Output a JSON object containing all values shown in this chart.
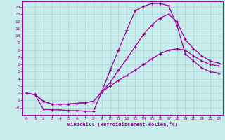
{
  "xlabel": "Windchill (Refroidissement éolien,°C)",
  "bg_color": "#c8ecec",
  "grid_color": "#aad4d4",
  "line_color": "#990099",
  "xlim": [
    -0.5,
    23.5
  ],
  "ylim": [
    -1.0,
    14.8
  ],
  "xticks": [
    0,
    1,
    2,
    3,
    4,
    5,
    6,
    7,
    8,
    9,
    10,
    11,
    12,
    13,
    14,
    15,
    16,
    17,
    18,
    19,
    20,
    21,
    22,
    23
  ],
  "yticks": [
    0,
    1,
    2,
    3,
    4,
    5,
    6,
    7,
    8,
    9,
    10,
    11,
    12,
    13,
    14
  ],
  "ytick_labels": [
    "-0",
    "1",
    "2",
    "3",
    "4",
    "5",
    "6",
    "7",
    "8",
    "9",
    "10",
    "11",
    "12",
    "13",
    "14"
  ],
  "curve_bottom_x": [
    0,
    1,
    2,
    3,
    4,
    5,
    6,
    7,
    8,
    9,
    10,
    11,
    12,
    13,
    14,
    15,
    16,
    17,
    18,
    19,
    20,
    21,
    22,
    23
  ],
  "curve_bottom_y": [
    2.0,
    1.8,
    0.9,
    0.5,
    0.5,
    0.5,
    0.6,
    0.7,
    0.9,
    2.2,
    3.0,
    3.8,
    4.5,
    5.2,
    6.0,
    6.8,
    7.5,
    8.0,
    8.2,
    8.0,
    7.2,
    6.5,
    6.0,
    5.8
  ],
  "curve_mid_x": [
    0,
    1,
    2,
    3,
    4,
    5,
    6,
    7,
    8,
    9,
    10,
    11,
    12,
    13,
    14,
    15,
    16,
    17,
    18,
    19,
    20,
    21,
    22,
    23
  ],
  "curve_mid_y": [
    2.0,
    1.8,
    0.9,
    0.5,
    0.5,
    0.5,
    0.6,
    0.7,
    0.9,
    2.2,
    3.5,
    5.2,
    6.8,
    8.5,
    10.2,
    11.5,
    12.5,
    13.0,
    12.0,
    9.5,
    8.2,
    7.2,
    6.5,
    6.2
  ],
  "curve_top_x": [
    0,
    1,
    2,
    3,
    4,
    5,
    6,
    7,
    8,
    9,
    10,
    11,
    12,
    13,
    14,
    15,
    16,
    17,
    18,
    19,
    20,
    21,
    22,
    23
  ],
  "curve_top_y": [
    2.0,
    1.8,
    -0.2,
    -0.3,
    -0.3,
    -0.4,
    -0.4,
    -0.5,
    -0.5,
    2.2,
    5.2,
    8.0,
    10.8,
    13.5,
    14.1,
    14.5,
    14.5,
    14.2,
    11.5,
    7.5,
    6.5,
    5.5,
    5.0,
    4.8
  ]
}
